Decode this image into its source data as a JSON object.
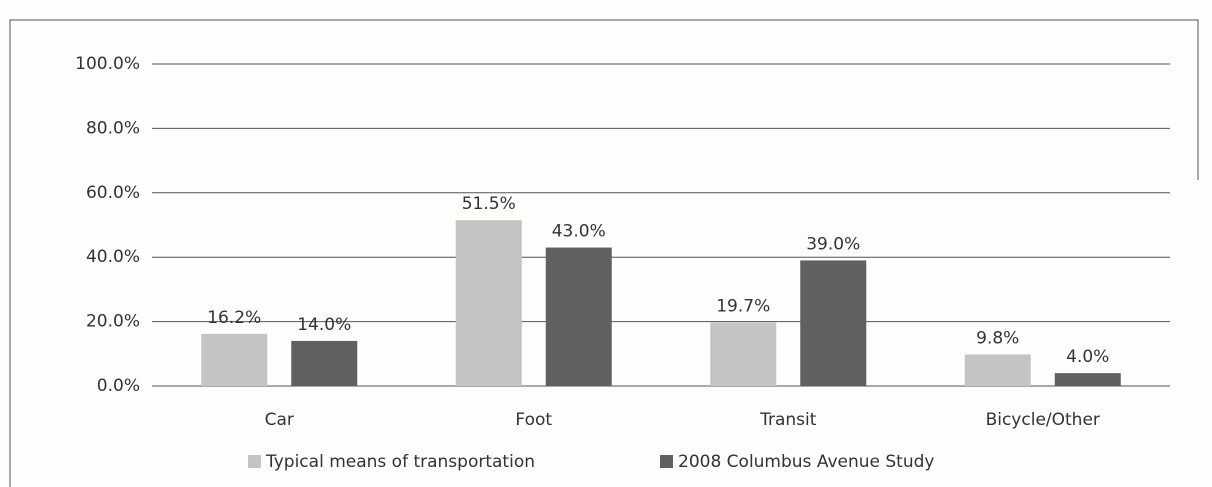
{
  "chart_data": {
    "type": "bar",
    "categories": [
      "Car",
      "Foot",
      "Transit",
      "Bicycle/Other"
    ],
    "series": [
      {
        "name": "Typical means of transportation",
        "color": "#c4c4c4",
        "values": [
          16.2,
          51.5,
          19.7,
          9.8
        ],
        "value_labels": [
          "16.2%",
          "51.5%",
          "19.7%",
          "9.8%"
        ]
      },
      {
        "name": "2008 Columbus Avenue Study",
        "color": "#606060",
        "values": [
          14.0,
          43.0,
          39.0,
          4.0
        ],
        "value_labels": [
          "14.0%",
          "43.0%",
          "39.0%",
          "4.0%"
        ]
      }
    ],
    "ylim": [
      0,
      100
    ],
    "yticks": [
      {
        "value": 0,
        "label": "0.0%"
      },
      {
        "value": 20,
        "label": "20.0%"
      },
      {
        "value": 40,
        "label": "40.0%"
      },
      {
        "value": 60,
        "label": "60.0%"
      },
      {
        "value": 80,
        "label": "80.0%"
      },
      {
        "value": 100,
        "label": "100.0%"
      }
    ],
    "grid": true,
    "legend": "bottom"
  }
}
